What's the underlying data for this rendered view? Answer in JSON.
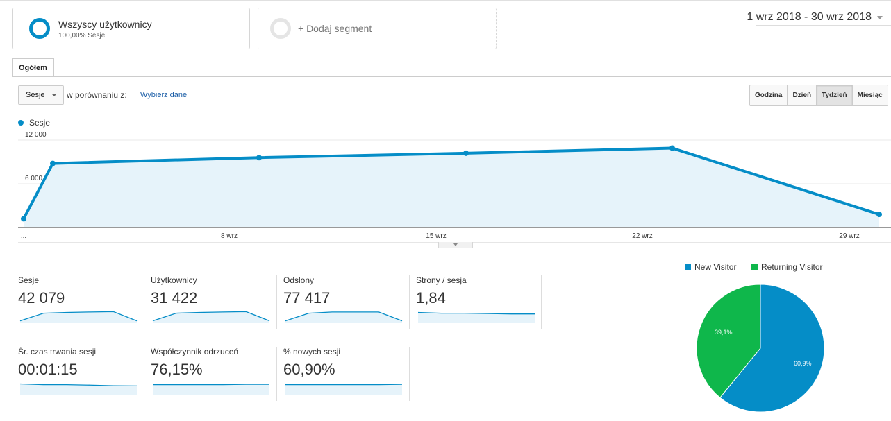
{
  "segments": {
    "active": {
      "name": "Wszyscy użytkownicy",
      "sub": "100,00% Sesje"
    },
    "add_label": "+ Dodaj segment"
  },
  "date_range": "1 wrz 2018 - 30 wrz 2018",
  "tab": "Ogółem",
  "controls": {
    "metric_select": "Sesje",
    "compare_text": "w porównaniu z:",
    "compare_link": "Wybierz dane",
    "granularity": [
      "Godzina",
      "Dzień",
      "Tydzień",
      "Miesiąc"
    ],
    "granularity_active": "Tydzień"
  },
  "chart_data": {
    "type": "area",
    "series_name": "Sesje",
    "color": "#058dc7",
    "x": [
      "1 wrz",
      "2 wrz",
      "9 wrz",
      "16 wrz",
      "23 wrz",
      "30 wrz"
    ],
    "values": [
      1200,
      8800,
      9600,
      10200,
      10900,
      1800
    ],
    "ylim": [
      0,
      12000
    ],
    "y_ticks": [
      "12 000",
      "6 000"
    ],
    "x_ticks": [
      "...",
      "8 wrz",
      "15 wrz",
      "22 wrz",
      "29 wrz"
    ]
  },
  "metrics": [
    {
      "label": "Sesje",
      "value": "42 079",
      "spark": [
        0.2,
        0.7,
        0.75,
        0.78,
        0.8,
        0.2
      ]
    },
    {
      "label": "Użytkownicy",
      "value": "31 422",
      "spark": [
        0.2,
        0.7,
        0.75,
        0.78,
        0.8,
        0.2
      ]
    },
    {
      "label": "Odsłony",
      "value": "77 417",
      "spark": [
        0.2,
        0.7,
        0.78,
        0.78,
        0.78,
        0.2
      ]
    },
    {
      "label": "Strony / sesja",
      "value": "1,84",
      "spark": [
        0.75,
        0.7,
        0.7,
        0.68,
        0.65,
        0.65
      ]
    },
    {
      "label": "Śr. czas trwania sesji",
      "value": "00:01:15",
      "spark": [
        0.75,
        0.7,
        0.7,
        0.67,
        0.63,
        0.62
      ]
    },
    {
      "label": "Współczynnik odrzuceń",
      "value": "76,15%",
      "spark": [
        0.7,
        0.7,
        0.7,
        0.7,
        0.72,
        0.72
      ]
    },
    {
      "label": "% nowych sesji",
      "value": "60,90%",
      "spark": [
        0.7,
        0.7,
        0.7,
        0.7,
        0.7,
        0.72
      ]
    }
  ],
  "pie": {
    "legend": [
      {
        "name": "New Visitor",
        "color": "#058dc7"
      },
      {
        "name": "Returning Visitor",
        "color": "#0fb74b"
      }
    ],
    "slices": [
      {
        "name": "New Visitor",
        "value": 60.9,
        "label": "60,9%",
        "color": "#058dc7"
      },
      {
        "name": "Returning Visitor",
        "value": 39.1,
        "label": "39,1%",
        "color": "#0fb74b"
      }
    ]
  }
}
